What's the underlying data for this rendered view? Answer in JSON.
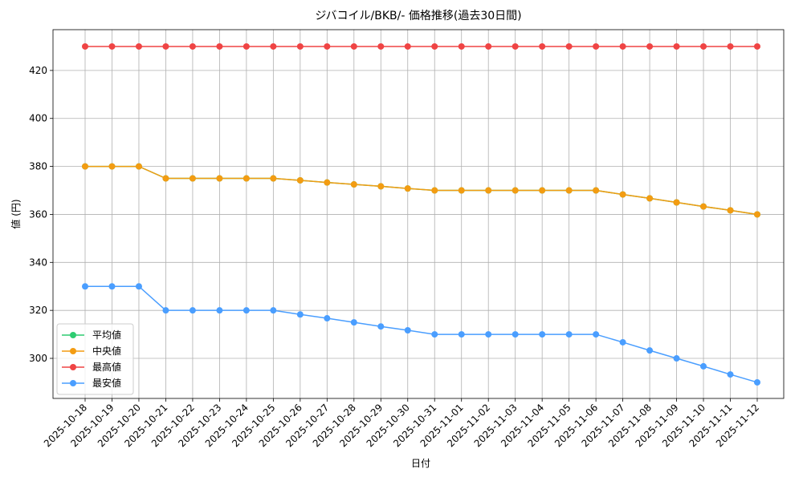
{
  "chart_data": {
    "type": "line",
    "title": "ジバコイル/BKB/- 価格推移(過去30日間)",
    "xlabel": "日付",
    "ylabel": "値 (円)",
    "categories": [
      "2025-10-18",
      "2025-10-19",
      "2025-10-20",
      "2025-10-21",
      "2025-10-22",
      "2025-10-23",
      "2025-10-24",
      "2025-10-25",
      "2025-10-26",
      "2025-10-27",
      "2025-10-28",
      "2025-10-29",
      "2025-10-30",
      "2025-10-31",
      "2025-11-01",
      "2025-11-02",
      "2025-11-03",
      "2025-11-04",
      "2025-11-05",
      "2025-11-06",
      "2025-11-07",
      "2025-11-08",
      "2025-11-09",
      "2025-11-10",
      "2025-11-11",
      "2025-11-12"
    ],
    "series": [
      {
        "name": "平均値",
        "color": "#2ecc71",
        "values": [
          380,
          380,
          380,
          375,
          375,
          375,
          375,
          375,
          374.2,
          373.3,
          372.5,
          371.7,
          370.8,
          370,
          370,
          370,
          370,
          370,
          370,
          370,
          368.3,
          366.7,
          365,
          363.3,
          361.7,
          360
        ]
      },
      {
        "name": "中央値",
        "color": "#f39c12",
        "values": [
          380,
          380,
          380,
          375,
          375,
          375,
          375,
          375,
          374.2,
          373.3,
          372.5,
          371.7,
          370.8,
          370,
          370,
          370,
          370,
          370,
          370,
          370,
          368.3,
          366.7,
          365,
          363.3,
          361.7,
          360
        ]
      },
      {
        "name": "最高値",
        "color": "#ef4444",
        "values": [
          430,
          430,
          430,
          430,
          430,
          430,
          430,
          430,
          430,
          430,
          430,
          430,
          430,
          430,
          430,
          430,
          430,
          430,
          430,
          430,
          430,
          430,
          430,
          430,
          430,
          430
        ]
      },
      {
        "name": "最安値",
        "color": "#4a9eff",
        "values": [
          330,
          330,
          330,
          320,
          320,
          320,
          320,
          320,
          318.3,
          316.7,
          315,
          313.3,
          311.7,
          310,
          310,
          310,
          310,
          310,
          310,
          310,
          306.7,
          303.3,
          300,
          296.7,
          293.3,
          290
        ]
      }
    ],
    "ylim": [
      283.3,
      437
    ],
    "yticks": [
      300,
      320,
      340,
      360,
      380,
      400,
      420
    ],
    "grid": true,
    "legend": "lower left"
  }
}
